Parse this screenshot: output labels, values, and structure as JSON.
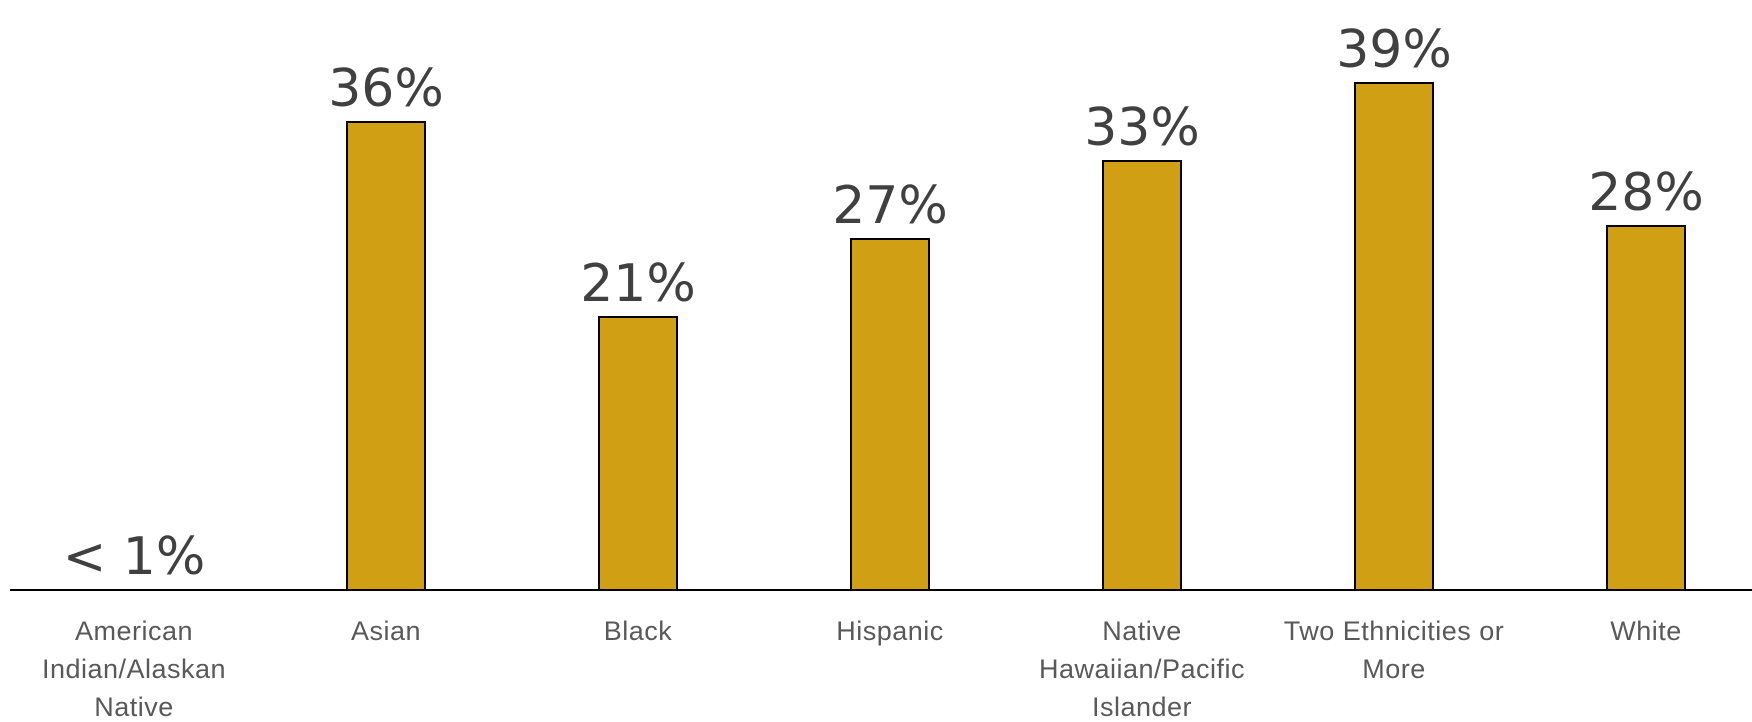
{
  "chart_data": {
    "type": "bar",
    "categories": [
      [
        "American",
        "Indian/Alaskan",
        "Native"
      ],
      [
        "Asian"
      ],
      [
        "Black"
      ],
      [
        "Hispanic"
      ],
      [
        "Native",
        "Hawaiian/Pacific",
        "Islander"
      ],
      [
        "Two Ethnicities or",
        "More"
      ],
      [
        "White"
      ]
    ],
    "values": [
      0.5,
      36,
      21,
      27,
      33,
      39,
      28
    ],
    "data_labels": [
      "< 1%",
      "36%",
      "21%",
      "27%",
      "33%",
      "39%",
      "28%"
    ],
    "title": "",
    "xlabel": "",
    "ylabel": "",
    "ylim": [
      0,
      45
    ],
    "grid": false,
    "legend": "none",
    "colors": {
      "bar": "#D19F13",
      "bar_outline": "#000000",
      "value_text": "#404040",
      "category_text": "#595959"
    }
  }
}
